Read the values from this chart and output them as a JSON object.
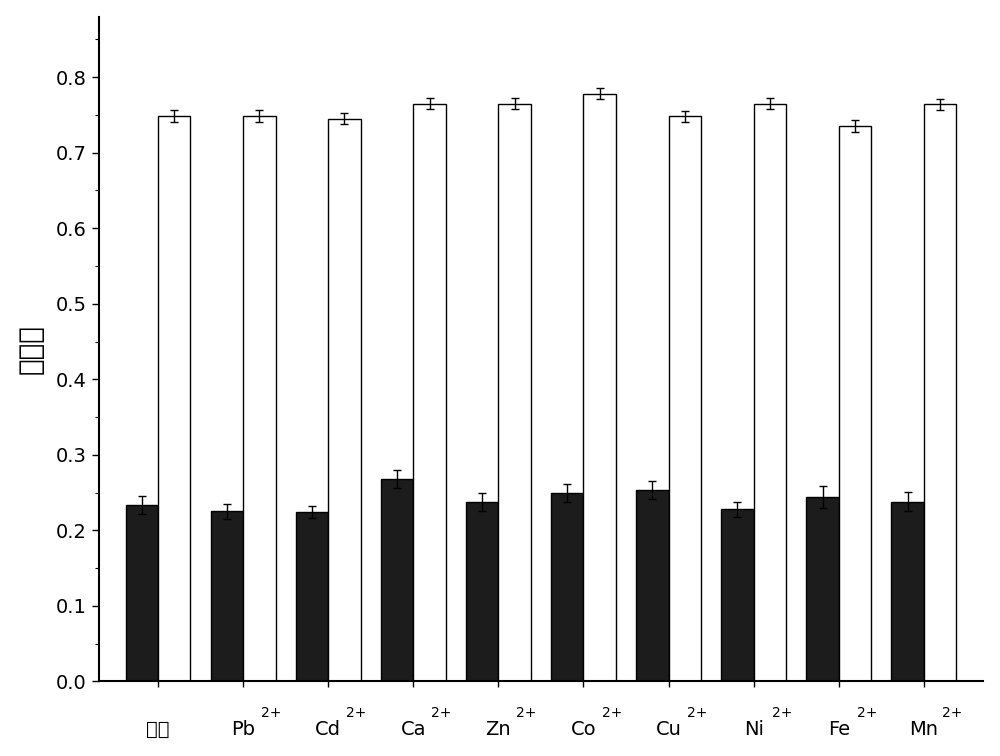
{
  "categories": [
    "空白",
    "Pb",
    "Cd",
    "Ca",
    "Zn",
    "Co",
    "Cu",
    "Ni",
    "Fe",
    "Mn"
  ],
  "superscripts": [
    "",
    "2+",
    "2+",
    "2+",
    "2+",
    "2+",
    "2+",
    "2+",
    "2+",
    "2+"
  ],
  "white_bars": [
    0.748,
    0.748,
    0.745,
    0.765,
    0.765,
    0.778,
    0.748,
    0.765,
    0.735,
    0.764
  ],
  "black_bars": [
    0.234,
    0.225,
    0.224,
    0.268,
    0.237,
    0.25,
    0.254,
    0.228,
    0.244,
    0.238
  ],
  "white_errors": [
    0.008,
    0.008,
    0.007,
    0.007,
    0.007,
    0.007,
    0.007,
    0.007,
    0.008,
    0.007
  ],
  "black_errors": [
    0.012,
    0.01,
    0.008,
    0.012,
    0.012,
    0.012,
    0.012,
    0.01,
    0.015,
    0.013
  ],
  "ylabel": "吸光度",
  "ylim": [
    0.0,
    0.88
  ],
  "yticks": [
    0.0,
    0.1,
    0.2,
    0.3,
    0.4,
    0.5,
    0.6,
    0.7,
    0.8
  ],
  "bar_width": 0.38,
  "white_bar_color": "#ffffff",
  "black_bar_color": "#1c1c1c",
  "edge_color": "#000000",
  "background_color": "#ffffff",
  "figsize": [
    10.0,
    7.56
  ],
  "dpi": 100
}
